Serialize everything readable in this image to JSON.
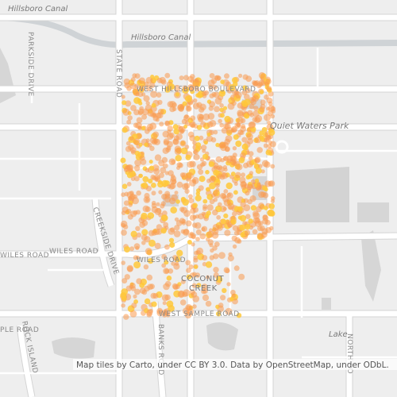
{
  "labels": {
    "canal_west": "Hillsboro Canal",
    "canal_east": "Hillsboro Canal",
    "parkside": "PARKSIDE DRIVE",
    "state_road": "STATE ROAD",
    "hillsboro_blvd": "WEST HILLSBORO BOULEVARD",
    "park": "Quiet Waters Park",
    "creekside": "CREEKSIDE DRIVE",
    "wiles_west": "WILES ROAD",
    "wiles_mid": "WILES ROAD",
    "wiles_east": "WILES ROAD",
    "coconut": "COCONUT",
    "creek": "CREEK",
    "sample_west": "PLE ROAD",
    "sample": "WEST SAMPLE ROAD",
    "banks": "BANKS ROAD",
    "rock_island": "ROCK ISLAND",
    "north_po": "NORTH PO",
    "lake": "Lake"
  },
  "attribution": "Map tiles by Carto, under CC BY 3.0. Data by OpenStreetMap, under ODbL."
}
